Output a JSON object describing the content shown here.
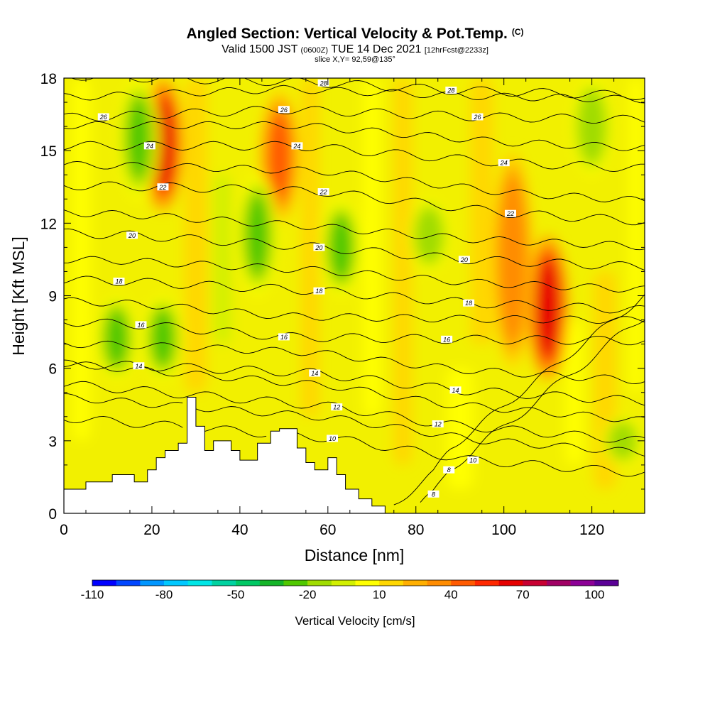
{
  "header": {
    "title": "Angled Section: Vertical Velocity & Pot.Temp.",
    "copyright_mark": "(C)",
    "valid_prefix": "Valid 1500 JST",
    "utc_time": "(0600Z)",
    "valid_date": "TUE 14 Dec 2021",
    "forecast_info": "[12hrFcst@2233z]",
    "slice_info": "slice X,Y= 92,59@135°"
  },
  "chart_data": {
    "type": "heatmap",
    "title": "Angled Section: Vertical Velocity & Pot.Temp.",
    "xlabel": "Distance [nm]",
    "ylabel": "Height [Kft MSL]",
    "xlim": [
      0,
      132
    ],
    "ylim": [
      0,
      18
    ],
    "x_ticks": [
      0,
      20,
      40,
      60,
      80,
      100,
      120
    ],
    "y_ticks": [
      0,
      3,
      6,
      9,
      12,
      15,
      18
    ],
    "colorbar": {
      "title": "Vertical Velocity [cm/s]",
      "range": [
        -110,
        110
      ],
      "tick_labels": [
        -110,
        -80,
        -50,
        -20,
        10,
        40,
        70,
        100
      ],
      "colors": [
        "#0000ff",
        "#0046ff",
        "#0096ff",
        "#00c8ff",
        "#00e6e6",
        "#00d2a0",
        "#00c864",
        "#14b428",
        "#50c800",
        "#a0dc00",
        "#d2f000",
        "#ffff00",
        "#ffd700",
        "#ffaf00",
        "#ff8c00",
        "#ff5a00",
        "#ff2800",
        "#e60000",
        "#c80032",
        "#a00064",
        "#8c0096",
        "#5a0096"
      ]
    },
    "updraft_cores": [
      {
        "x": 22.5,
        "y_range": [
          12.5,
          18
        ],
        "w_max": 70
      },
      {
        "x": 49,
        "y_range": [
          12,
          17.5
        ],
        "w_max": 50
      },
      {
        "x": 110,
        "y_range": [
          5.5,
          11.5
        ],
        "w_max": 70
      },
      {
        "x": 102,
        "y_range": [
          6,
          15
        ],
        "w_max": 40
      }
    ],
    "downdraft_cores": [
      {
        "x": 17,
        "y_range": [
          13,
          18
        ],
        "w_min": -30
      },
      {
        "x": 22.5,
        "y_range": [
          5.5,
          9
        ],
        "w_min": -30
      },
      {
        "x": 12,
        "y_range": [
          5.5,
          9
        ],
        "w_min": -30
      },
      {
        "x": 44,
        "y_range": [
          9,
          14
        ],
        "w_min": -25
      },
      {
        "x": 63,
        "y_range": [
          9,
          13
        ],
        "w_min": -25
      },
      {
        "x": 83,
        "y_range": [
          10,
          13
        ],
        "w_min": -20
      },
      {
        "x": 120,
        "y_range": [
          14,
          18
        ],
        "w_min": -20
      },
      {
        "x": 127,
        "y_range": [
          2,
          4
        ],
        "w_min": -20
      }
    ],
    "terrain": {
      "x": [
        0,
        5,
        5,
        11,
        11,
        16,
        16,
        19,
        19,
        21,
        21,
        23,
        23,
        26,
        26,
        28,
        28,
        30,
        30,
        32,
        32,
        34,
        34,
        38,
        38,
        40,
        40,
        44,
        44,
        47,
        47,
        49,
        49,
        53,
        53,
        55,
        55,
        57,
        57,
        60,
        60,
        62,
        62,
        64,
        64,
        67,
        67,
        70,
        70,
        73
      ],
      "y": [
        1.0,
        1.0,
        1.3,
        1.3,
        1.6,
        1.6,
        1.3,
        1.3,
        1.8,
        1.8,
        2.3,
        2.3,
        2.6,
        2.6,
        2.9,
        2.9,
        4.8,
        4.8,
        3.6,
        3.6,
        2.6,
        2.6,
        3.0,
        3.0,
        2.6,
        2.6,
        2.2,
        2.2,
        2.9,
        2.9,
        3.4,
        3.4,
        3.5,
        3.5,
        2.7,
        2.7,
        2.1,
        2.1,
        1.8,
        1.8,
        2.3,
        2.3,
        1.6,
        1.6,
        1.0,
        1.0,
        0.6,
        0.6,
        0.3,
        0.3
      ]
    },
    "theta_labels": [
      {
        "value": "8",
        "x": 84,
        "y": 0.8
      },
      {
        "value": "8",
        "x": 87.5,
        "y": 1.8
      },
      {
        "value": "10",
        "x": 61,
        "y": 3.1
      },
      {
        "value": "10",
        "x": 93,
        "y": 2.2
      },
      {
        "value": "12",
        "x": 62,
        "y": 4.4
      },
      {
        "value": "12",
        "x": 85,
        "y": 3.7
      },
      {
        "value": "14",
        "x": 17,
        "y": 6.1
      },
      {
        "value": "14",
        "x": 57,
        "y": 5.8
      },
      {
        "value": "14",
        "x": 89,
        "y": 5.1
      },
      {
        "value": "16",
        "x": 17.5,
        "y": 7.8
      },
      {
        "value": "16",
        "x": 50,
        "y": 7.3
      },
      {
        "value": "16",
        "x": 87,
        "y": 7.2
      },
      {
        "value": "18",
        "x": 12.5,
        "y": 9.6
      },
      {
        "value": "18",
        "x": 58,
        "y": 9.2
      },
      {
        "value": "18",
        "x": 92,
        "y": 8.7
      },
      {
        "value": "20",
        "x": 15.5,
        "y": 11.5
      },
      {
        "value": "20",
        "x": 58,
        "y": 11.0
      },
      {
        "value": "20",
        "x": 91,
        "y": 10.5
      },
      {
        "value": "22",
        "x": 22.5,
        "y": 13.5
      },
      {
        "value": "22",
        "x": 59,
        "y": 13.3
      },
      {
        "value": "22",
        "x": 101.5,
        "y": 12.4
      },
      {
        "value": "24",
        "x": 19.5,
        "y": 15.2
      },
      {
        "value": "24",
        "x": 53,
        "y": 15.2
      },
      {
        "value": "24",
        "x": 100,
        "y": 14.5
      },
      {
        "value": "26",
        "x": 9,
        "y": 16.4
      },
      {
        "value": "26",
        "x": 50,
        "y": 16.7
      },
      {
        "value": "26",
        "x": 94,
        "y": 16.4
      },
      {
        "value": "28",
        "x": 59,
        "y": 17.8
      },
      {
        "value": "28",
        "x": 88,
        "y": 17.5
      }
    ]
  }
}
